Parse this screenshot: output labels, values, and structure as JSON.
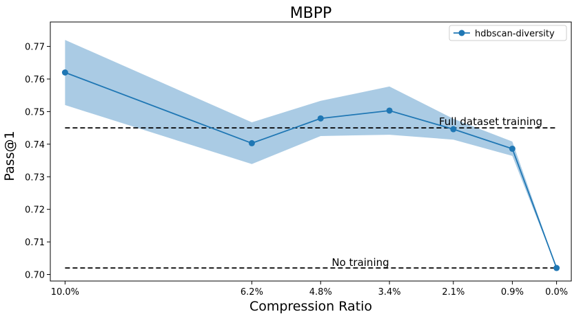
{
  "chart_data": {
    "type": "line",
    "title": "MBPP",
    "xlabel": "Compression Ratio",
    "ylabel": "Pass@1",
    "categories": [
      "10.0%",
      "6.2%",
      "4.8%",
      "3.4%",
      "2.1%",
      "0.9%",
      "0.0%"
    ],
    "x": [
      10.0,
      6.2,
      4.8,
      3.4,
      2.1,
      0.9,
      0.0
    ],
    "xlim": [
      10.3,
      -0.3
    ],
    "ylim": [
      0.698,
      0.7775
    ],
    "yticks": [
      0.7,
      0.71,
      0.72,
      0.73,
      0.74,
      0.75,
      0.76,
      0.77
    ],
    "ytick_labels": [
      "0.70",
      "0.71",
      "0.72",
      "0.73",
      "0.74",
      "0.75",
      "0.76",
      "0.77"
    ],
    "series": [
      {
        "name": "hdbscan-diversity",
        "color": "#1f77b4",
        "marker": "circle",
        "values": [
          0.762,
          0.7403,
          0.7479,
          0.7503,
          0.7446,
          0.7386,
          0.702
        ],
        "lower": [
          0.752,
          0.7339,
          0.7425,
          0.7429,
          0.7414,
          0.7364,
          0.702
        ],
        "upper": [
          0.772,
          0.7467,
          0.7533,
          0.7577,
          0.7478,
          0.7408,
          0.702
        ],
        "band_color": "#aacbe4"
      }
    ],
    "reference_lines": [
      {
        "label": "Full dataset training",
        "value": 0.745,
        "style": "dashed",
        "color": "#000000"
      },
      {
        "label": "No training",
        "value": 0.702,
        "style": "dashed",
        "color": "#000000"
      }
    ],
    "legend": "top-right",
    "grid": false
  }
}
